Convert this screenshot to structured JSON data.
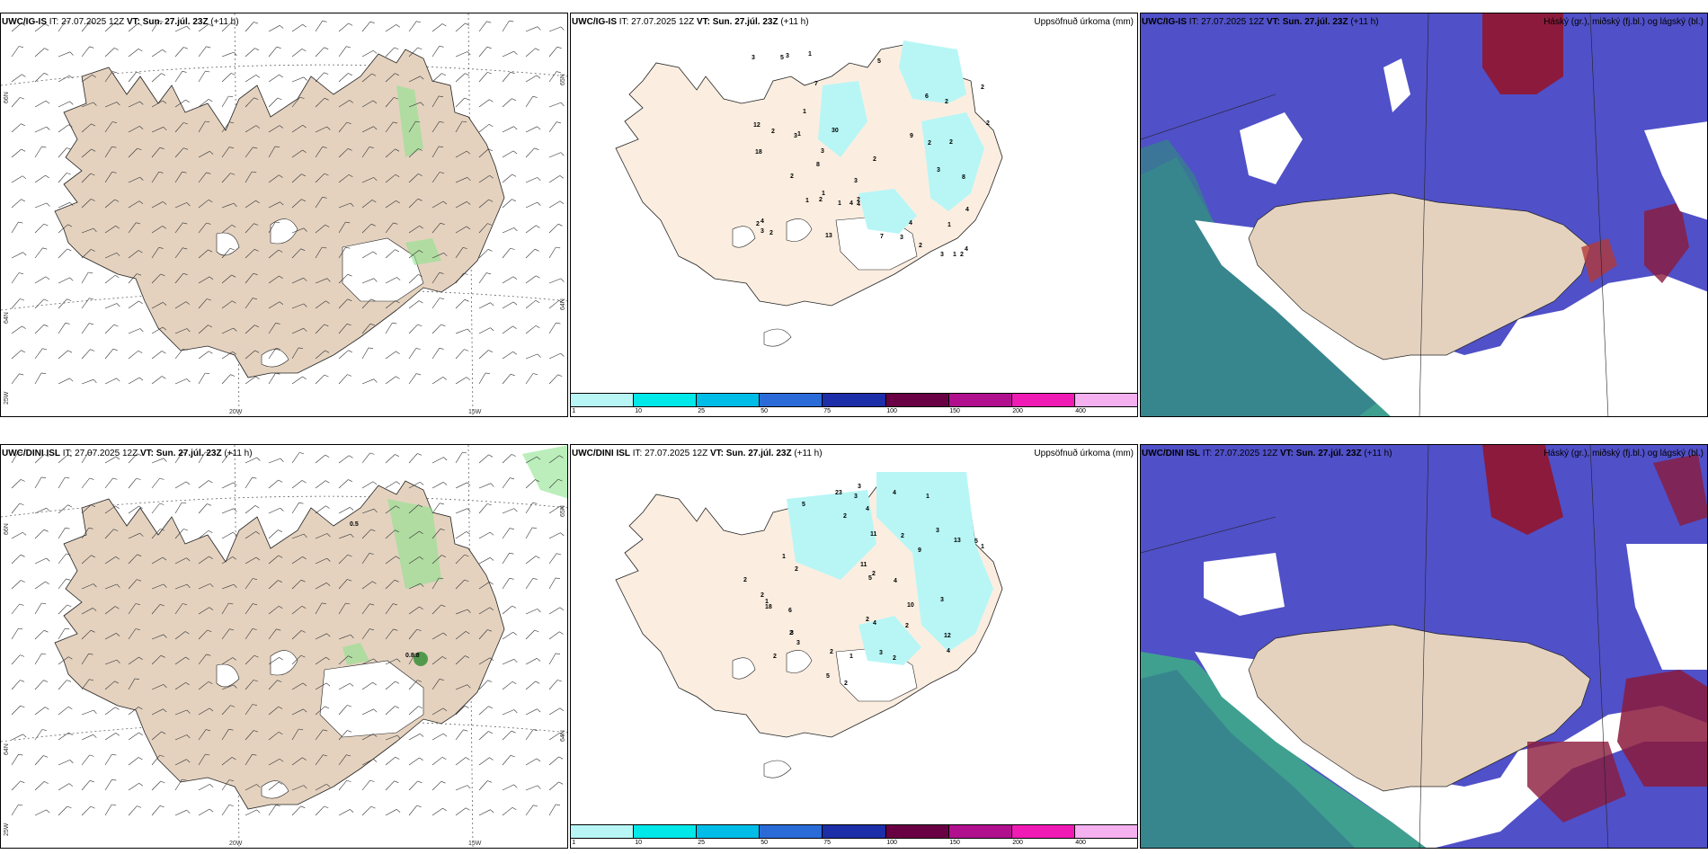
{
  "panels": [
    {
      "model": "UWC/IG-IS",
      "it": "IT: 27.07.2025 12Z",
      "vt_label": "VT:",
      "vt": "Sun. 27.júl. 23Z",
      "lead": "(+11 h)",
      "title_right": ""
    },
    {
      "model": "UWC/IG-IS",
      "it": "IT: 27.07.2025 12Z",
      "vt_label": "VT:",
      "vt": "Sun. 27.júl. 23Z",
      "lead": "(+11 h)",
      "title_right": "Uppsöfnuð úrkoma (mm)"
    },
    {
      "model": "UWC/IG-IS",
      "it": "IT: 27.07.2025 12Z",
      "vt_label": "VT:",
      "vt": "Sun. 27.júl. 23Z",
      "lead": "(+11 h)",
      "title_right": "Háský (gr.), miðský (fj.bl.) og lágský (bl.)"
    },
    {
      "model": "UWC/DINI ISL",
      "it": "IT: 27.07.2025 12Z",
      "vt_label": "VT:",
      "vt": "Sun. 27.júl. 23Z",
      "lead": "(+11 h)",
      "title_right": ""
    },
    {
      "model": "UWC/DINI ISL",
      "it": "IT: 27.07.2025 12Z",
      "vt_label": "VT:",
      "vt": "Sun. 27.júl. 23Z",
      "lead": "(+11 h)",
      "title_right": "Uppsöfnuð úrkoma (mm)"
    },
    {
      "model": "UWC/DINI ISL",
      "it": "IT: 27.07.2025 12Z",
      "vt_label": "VT:",
      "vt": "Sun. 27.júl. 23Z",
      "lead": "(+11 h)",
      "title_right": "Háský (gr.), miðský (fj.bl.) og lágský (bl.)"
    }
  ],
  "axes": {
    "lon": [
      "20W",
      "15W"
    ],
    "lat_left": [
      "66N",
      "64N",
      "25W"
    ],
    "lat_right": [
      "65N",
      "64N"
    ]
  },
  "wind_labels_dini": [
    "0.5",
    "0.8.8"
  ],
  "precip_labels": {
    "ig": [
      "3",
      "3",
      "5",
      "3",
      "2",
      "7",
      "4",
      "8",
      "2",
      "2",
      "2",
      "5",
      "3",
      "3",
      "3",
      "4",
      "2",
      "2",
      "2",
      "30",
      "1",
      "1",
      "3",
      "1",
      "1",
      "9",
      "7",
      "4",
      "2",
      "2",
      "1",
      "1",
      "2",
      "4",
      "6",
      "12",
      "2",
      "3",
      "2",
      "13",
      "18",
      "4",
      "8",
      "2",
      "4",
      "3",
      "2",
      "1",
      "1"
    ],
    "dini": [
      "2",
      "1",
      "5",
      "3",
      "4",
      "2",
      "6",
      "3",
      "13",
      "9",
      "2",
      "3",
      "2",
      "5",
      "2",
      "23",
      "4",
      "2",
      "2",
      "5",
      "2",
      "3",
      "2",
      "2",
      "11",
      "2",
      "1",
      "4",
      "11",
      "10",
      "1",
      "3",
      "3",
      "2",
      "12",
      "18",
      "5",
      "4",
      "2",
      "3",
      "1",
      "4",
      "1"
    ]
  },
  "colorbar": {
    "colors": [
      "#b8f6f6",
      "#00e8e8",
      "#00bde8",
      "#2a6bd8",
      "#1c2ea8",
      "#6a0044",
      "#b0108e",
      "#f01ab4",
      "#f5b0f0"
    ],
    "ticks": [
      "1",
      "10",
      "25",
      "50",
      "75",
      "100",
      "150",
      "200",
      "400"
    ]
  },
  "colors": {
    "land": "#e4d2bf",
    "land_light": "#fbeee0",
    "precip": "#b8f6f6",
    "cloud_mid": "#5050c8",
    "cloud_high": "#8b1a3c",
    "cloud_low": "#30b090"
  }
}
